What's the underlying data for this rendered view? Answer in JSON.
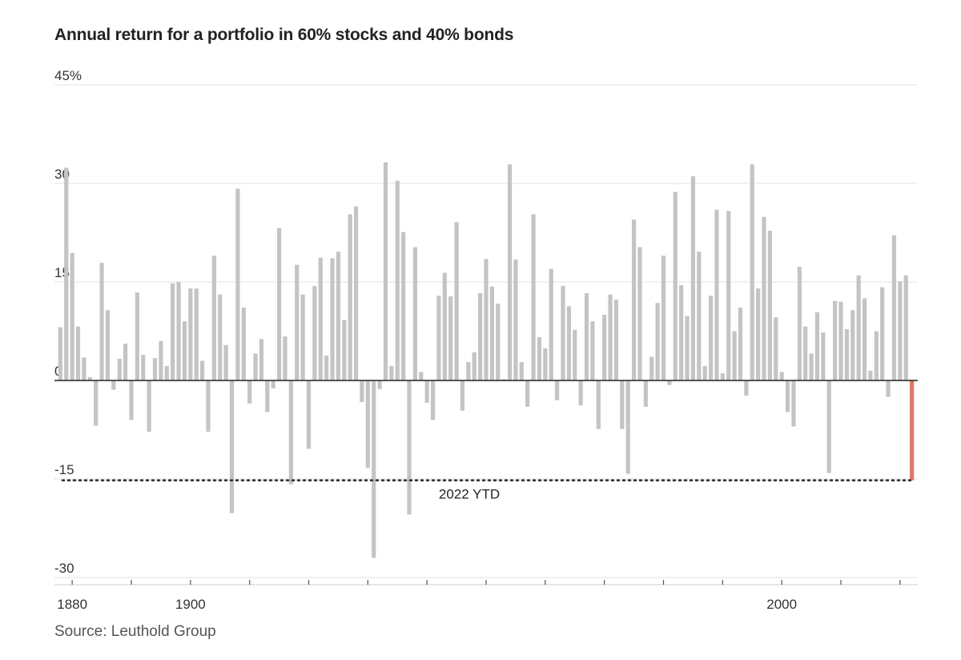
{
  "chart_data": {
    "type": "bar",
    "title": "Annual return for a portfolio in 60% stocks and 40% bonds",
    "source": "Source: Leuthold Group",
    "ylim": [
      -30,
      45
    ],
    "yticks": [
      {
        "value": 45,
        "label": "45%"
      },
      {
        "value": 30,
        "label": "30"
      },
      {
        "value": 15,
        "label": "15"
      },
      {
        "value": 0,
        "label": "0"
      },
      {
        "value": -15,
        "label": "-15"
      },
      {
        "value": -30,
        "label": "-30"
      }
    ],
    "xlim": [
      1877,
      2023
    ],
    "xtick_labels": [
      {
        "year": 1880,
        "label": "1880"
      },
      {
        "year": 1900,
        "label": "1900"
      },
      {
        "year": 2000,
        "label": "2000"
      }
    ],
    "xtick_marks": [
      1880,
      1890,
      1900,
      1910,
      1920,
      1930,
      1940,
      1950,
      1960,
      1970,
      1980,
      1990,
      2000,
      2010,
      2020
    ],
    "grid": true,
    "colors": {
      "bar": "#c4c4c4",
      "highlight": "#e0786a",
      "grid": "#e3e3e3",
      "axis": "#222222"
    },
    "reference_line": {
      "value": -15.2,
      "label": "2022 YTD",
      "style": "dotted"
    },
    "highlight_year": 2022,
    "series": [
      {
        "x": [
          1878,
          1879,
          1880,
          1881,
          1882,
          1883,
          1884,
          1885,
          1886,
          1887,
          1888,
          1889,
          1890,
          1891,
          1892,
          1893,
          1894,
          1895,
          1896,
          1897,
          1898,
          1899,
          1900,
          1901,
          1902,
          1903,
          1904,
          1905,
          1906,
          1907,
          1908,
          1909,
          1910,
          1911,
          1912,
          1913,
          1914,
          1915,
          1916,
          1917,
          1918,
          1919,
          1920,
          1921,
          1922,
          1923,
          1924,
          1925,
          1926,
          1927,
          1928,
          1929,
          1930,
          1931,
          1932,
          1933,
          1934,
          1935,
          1936,
          1937,
          1938,
          1939,
          1940,
          1941,
          1942,
          1943,
          1944,
          1945,
          1946,
          1947,
          1948,
          1949,
          1950,
          1951,
          1952,
          1953,
          1954,
          1955,
          1956,
          1957,
          1958,
          1959,
          1960,
          1961,
          1962,
          1963,
          1964,
          1965,
          1966,
          1967,
          1968,
          1969,
          1970,
          1971,
          1972,
          1973,
          1974,
          1975,
          1976,
          1977,
          1978,
          1979,
          1980,
          1981,
          1982,
          1983,
          1984,
          1985,
          1986,
          1987,
          1988,
          1989,
          1990,
          1991,
          1992,
          1993,
          1994,
          1995,
          1996,
          1997,
          1998,
          1999,
          2000,
          2001,
          2002,
          2003,
          2004,
          2005,
          2006,
          2007,
          2008,
          2009,
          2010,
          2011,
          2012,
          2013,
          2014,
          2015,
          2016,
          2017,
          2018,
          2019,
          2020,
          2021,
          2022
        ],
        "values": [
          8.1,
          32.4,
          19.4,
          8.2,
          3.5,
          0.5,
          -6.9,
          17.9,
          10.7,
          -1.4,
          3.3,
          5.6,
          -6.0,
          13.4,
          3.9,
          -7.8,
          3.4,
          6.0,
          2.2,
          14.8,
          15.0,
          9.0,
          14.0,
          14.0,
          3.0,
          -7.8,
          19.0,
          13.1,
          5.4,
          -20.2,
          29.2,
          11.1,
          -3.5,
          4.1,
          6.3,
          -4.8,
          -1.2,
          23.2,
          6.7,
          -15.8,
          17.6,
          13.1,
          -10.4,
          14.4,
          18.7,
          3.8,
          18.6,
          19.6,
          9.2,
          25.3,
          26.5,
          -3.3,
          -13.3,
          -27.0,
          -1.3,
          33.2,
          2.2,
          30.4,
          22.6,
          -20.4,
          20.3,
          1.3,
          -3.4,
          -6.0,
          12.9,
          16.4,
          12.8,
          24.1,
          -4.6,
          2.8,
          4.3,
          13.3,
          18.5,
          14.3,
          11.7,
          0.2,
          32.9,
          18.4,
          2.8,
          -4.0,
          25.3,
          6.6,
          4.9,
          17.0,
          -3.0,
          14.4,
          11.3,
          7.7,
          -3.8,
          13.3,
          9.0,
          -7.4,
          10.0,
          13.1,
          12.3,
          -7.4,
          -14.2,
          24.5,
          20.3,
          -4.0,
          3.6,
          11.8,
          19.0,
          -0.7,
          28.7,
          14.5,
          9.8,
          31.1,
          19.6,
          2.2,
          12.9,
          26.0,
          1.1,
          25.8,
          7.5,
          11.1,
          -2.3,
          32.9,
          14.0,
          24.9,
          22.8,
          9.6,
          1.3,
          -4.8,
          -7.0,
          17.3,
          8.2,
          4.1,
          10.4,
          7.3,
          -14.1,
          12.1,
          12.0,
          7.8,
          10.7,
          16.0,
          12.5,
          1.5,
          7.5,
          14.2,
          -2.5,
          22.1,
          15.1,
          16.0,
          -15.2
        ]
      }
    ]
  }
}
